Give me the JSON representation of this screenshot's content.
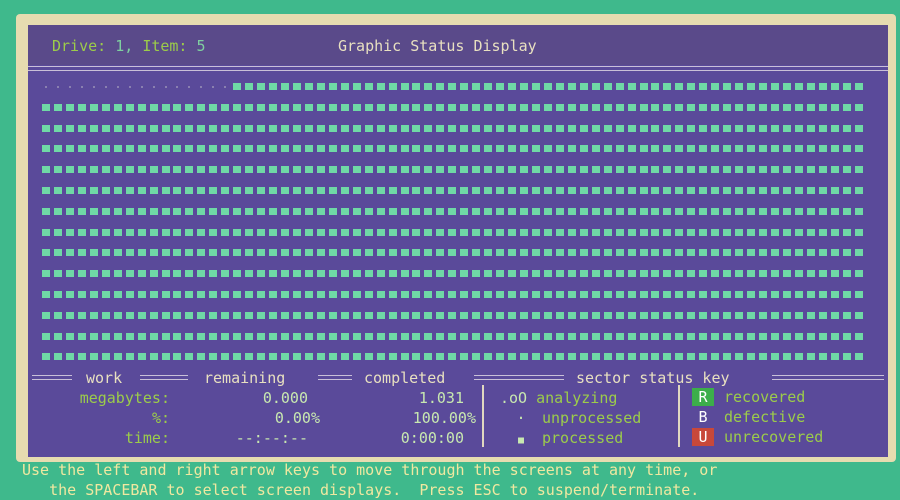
{
  "header": {
    "drive_label": "Drive:",
    "drive_value": "1,",
    "item_label": "Item:",
    "item_value": "5",
    "title": "Graphic Status Display"
  },
  "grid": {
    "rows": 14,
    "cols": 69,
    "unprocessed_cells": 16,
    "processed_color": "#6fd9a6"
  },
  "stats": {
    "headers": {
      "work": "work",
      "remaining": "remaining",
      "completed": "completed",
      "key": "sector status key"
    },
    "rows": [
      {
        "label": "megabytes:",
        "remaining": "0.000",
        "completed": "1.031"
      },
      {
        "label": "%:",
        "remaining": "0.00%",
        "completed": "100.00%"
      },
      {
        "label": "time:",
        "remaining": "--:--:--",
        "completed": "0:00:00"
      }
    ],
    "key_left": [
      {
        "symbol": ".oO",
        "label": "analyzing"
      },
      {
        "symbol": "·",
        "label": "unprocessed"
      },
      {
        "symbol": "■",
        "label": "processed"
      }
    ],
    "key_right": [
      {
        "symbol": "R",
        "label": "recovered",
        "color": "#3cae4a"
      },
      {
        "symbol": "B",
        "label": "defective",
        "color": ""
      },
      {
        "symbol": "U",
        "label": "unrecovered",
        "color": "#c8483a"
      }
    ]
  },
  "footer": {
    "line1": "Use the left and right arrow keys to move through the screens at any time, or",
    "line2": "   the SPACEBAR to select screen displays.  Press ESC to suspend/terminate."
  }
}
